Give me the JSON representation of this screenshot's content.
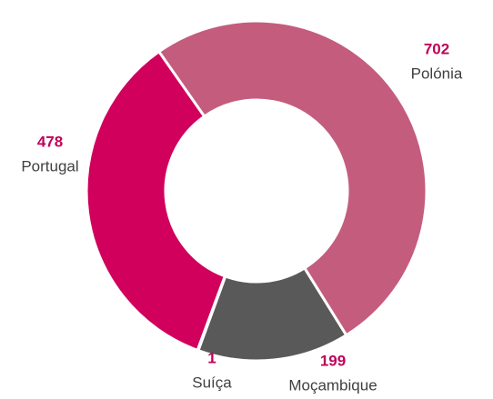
{
  "chart_data": {
    "type": "donut",
    "categories": [
      "Polónia",
      "Moçambique",
      "Suíça",
      "Portugal"
    ],
    "values": [
      702,
      199,
      1,
      478
    ],
    "colors": [
      "#c45c7e",
      "#595959",
      "#a8a8a8",
      "#d1005c"
    ]
  }
}
